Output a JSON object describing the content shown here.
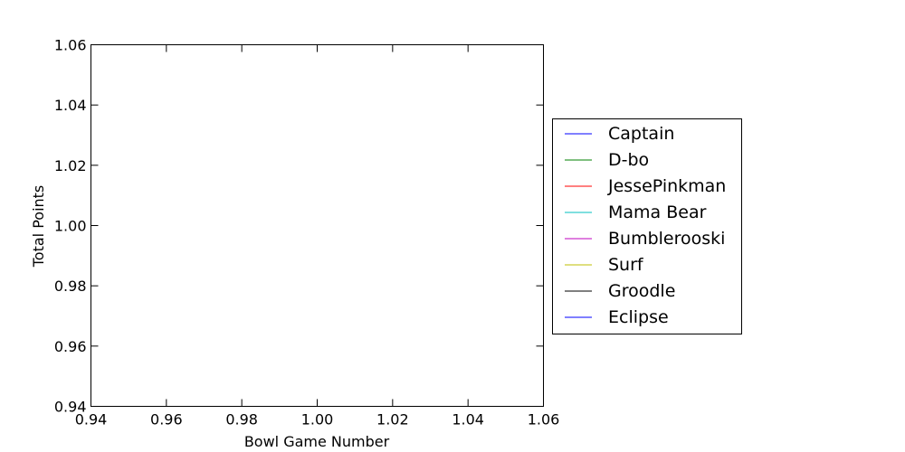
{
  "chart_data": {
    "type": "line",
    "title": "",
    "xlabel": "Bowl Game Number",
    "ylabel": "Total Points",
    "xlim": [
      0.94,
      1.06
    ],
    "ylim": [
      0.94,
      1.06
    ],
    "x_ticks": [
      "0.94",
      "0.96",
      "0.98",
      "1.00",
      "1.02",
      "1.04",
      "1.06"
    ],
    "y_ticks": [
      "0.94",
      "0.96",
      "0.98",
      "1.00",
      "1.02",
      "1.04",
      "1.06"
    ],
    "grid": false,
    "legend_position": "outside right",
    "series": [
      {
        "name": "Captain",
        "color": "#0000ff",
        "x": [],
        "y": []
      },
      {
        "name": "D-bo",
        "color": "#008000",
        "x": [],
        "y": []
      },
      {
        "name": "JessePinkman",
        "color": "#ff0000",
        "x": [],
        "y": []
      },
      {
        "name": "Mama Bear",
        "color": "#00bfbf",
        "x": [],
        "y": []
      },
      {
        "name": "Bumblerooski",
        "color": "#bf00bf",
        "x": [],
        "y": []
      },
      {
        "name": "Surf",
        "color": "#bfbf00",
        "x": [],
        "y": []
      },
      {
        "name": "Groodle",
        "color": "#000000",
        "x": [],
        "y": []
      },
      {
        "name": "Eclipse",
        "color": "#0000ff",
        "x": [],
        "y": []
      }
    ]
  }
}
